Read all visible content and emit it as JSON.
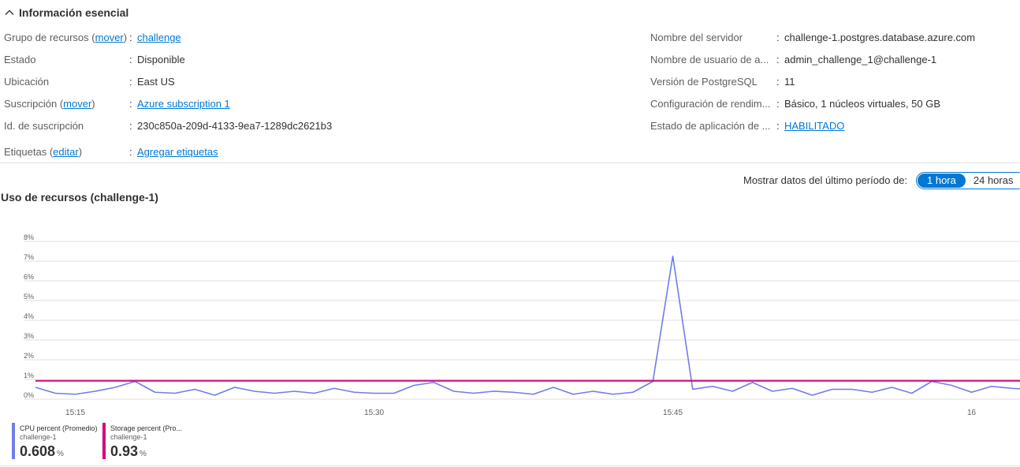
{
  "essentials": {
    "header": "Información esencial",
    "left": {
      "resource_group": {
        "label": "Grupo de recursos",
        "action": "mover",
        "value": "challenge"
      },
      "status": {
        "label": "Estado",
        "value": "Disponible"
      },
      "location": {
        "label": "Ubicación",
        "value": "East US"
      },
      "subscription": {
        "label": "Suscripción",
        "action": "mover",
        "value": "Azure subscription 1"
      },
      "subscription_id": {
        "label": "Id. de suscripción",
        "value": "230c850a-209d-4133-9ea7-1289dc2621b3"
      },
      "tags": {
        "label": "Etiquetas",
        "action": "editar",
        "value": "Agregar etiquetas"
      }
    },
    "right": {
      "server_name": {
        "label": "Nombre del servidor",
        "value": "challenge-1.postgres.database.azure.com"
      },
      "admin_user": {
        "label": "Nombre de usuario de a...",
        "value": "admin_challenge_1@challenge-1"
      },
      "pg_version": {
        "label": "Versión de PostgreSQL",
        "value": "11"
      },
      "perf_config": {
        "label": "Configuración de rendim...",
        "value": "Básico, 1 núcleos virtuales, 50 GB"
      },
      "enforce_state": {
        "label": "Estado de aplicación de ...",
        "value": "HABILITADO"
      }
    }
  },
  "time_range": {
    "label": "Mostrar datos del último período de:",
    "options": [
      "1 hora",
      "24 horas"
    ],
    "selected": "1 hora"
  },
  "chart_title": "Uso de recursos (challenge-1)",
  "legend": [
    {
      "name": "CPU percent (Promedio)",
      "resource": "challenge-1",
      "value": "0.608",
      "unit": "%",
      "color": "#6f7de8"
    },
    {
      "name": "Storage percent (Pro...",
      "resource": "challenge-1",
      "value": "0.93",
      "unit": "%",
      "color": "#d6007f"
    }
  ],
  "chart_data": {
    "type": "line",
    "title": "",
    "xlabel": "",
    "ylabel": "",
    "ylim": [
      0,
      8
    ],
    "y_ticks": [
      "0%",
      "1%",
      "2%",
      "3%",
      "4%",
      "5%",
      "6%",
      "7%",
      "8%"
    ],
    "x_ticks": [
      "15:15",
      "15:30",
      "15:45",
      "16"
    ],
    "grid": true,
    "x": [
      "15:13",
      "15:14",
      "15:15",
      "15:16",
      "15:17",
      "15:18",
      "15:19",
      "15:20",
      "15:21",
      "15:22",
      "15:23",
      "15:24",
      "15:25",
      "15:26",
      "15:27",
      "15:28",
      "15:29",
      "15:30",
      "15:31",
      "15:32",
      "15:33",
      "15:34",
      "15:35",
      "15:36",
      "15:37",
      "15:38",
      "15:39",
      "15:40",
      "15:41",
      "15:42",
      "15:43",
      "15:44",
      "15:45",
      "15:46",
      "15:47",
      "15:48",
      "15:49",
      "15:50",
      "15:51",
      "15:52",
      "15:53",
      "15:54",
      "15:55",
      "15:56",
      "15:57",
      "15:58",
      "15:59",
      "16:00",
      "16:01",
      "16:02",
      "16:03"
    ],
    "series": [
      {
        "name": "CPU percent (Promedio)",
        "color": "#6f7de8",
        "values": [
          0.6,
          0.3,
          0.25,
          0.4,
          0.6,
          0.9,
          0.35,
          0.3,
          0.5,
          0.2,
          0.6,
          0.4,
          0.3,
          0.4,
          0.3,
          0.55,
          0.35,
          0.3,
          0.3,
          0.7,
          0.85,
          0.4,
          0.3,
          0.4,
          0.35,
          0.25,
          0.6,
          0.25,
          0.4,
          0.25,
          0.35,
          0.9,
          7.25,
          0.5,
          0.65,
          0.4,
          0.85,
          0.4,
          0.55,
          0.2,
          0.5,
          0.5,
          0.35,
          0.6,
          0.3,
          0.9,
          0.7,
          0.35,
          0.65,
          0.55,
          0.5
        ]
      },
      {
        "name": "Storage percent (Promedio)",
        "color": "#d6007f",
        "values": [
          0.93,
          0.93,
          0.93,
          0.93,
          0.93,
          0.93,
          0.93,
          0.93,
          0.93,
          0.93,
          0.93,
          0.93,
          0.93,
          0.93,
          0.93,
          0.93,
          0.93,
          0.93,
          0.93,
          0.93,
          0.93,
          0.93,
          0.93,
          0.93,
          0.93,
          0.93,
          0.93,
          0.93,
          0.93,
          0.93,
          0.93,
          0.93,
          0.93,
          0.93,
          0.93,
          0.93,
          0.93,
          0.93,
          0.93,
          0.93,
          0.93,
          0.93,
          0.93,
          0.93,
          0.93,
          0.93,
          0.93,
          0.93,
          0.93,
          0.93,
          0.93
        ]
      }
    ]
  }
}
